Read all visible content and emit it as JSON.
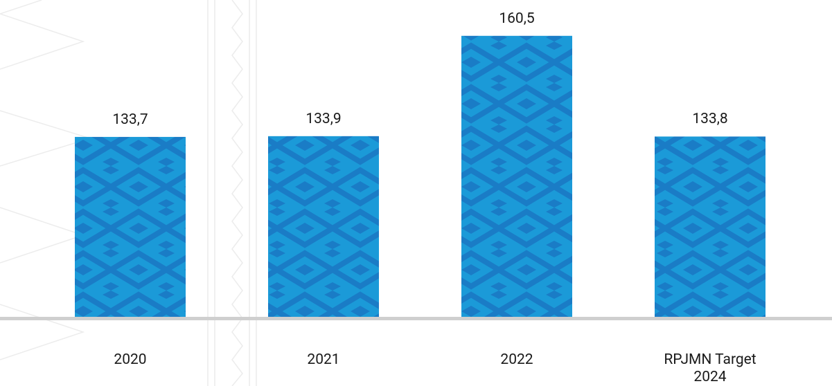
{
  "chart_data": {
    "type": "bar",
    "categories": [
      "2020",
      "2021",
      "2022",
      "RPJMN Target 2024"
    ],
    "values": [
      133.7,
      133.9,
      160.5,
      133.8
    ],
    "value_labels": [
      "133,7",
      "133,9",
      "160,5",
      "133,8"
    ],
    "color": "#1b9ad8",
    "ylim": [
      86,
      170
    ]
  }
}
